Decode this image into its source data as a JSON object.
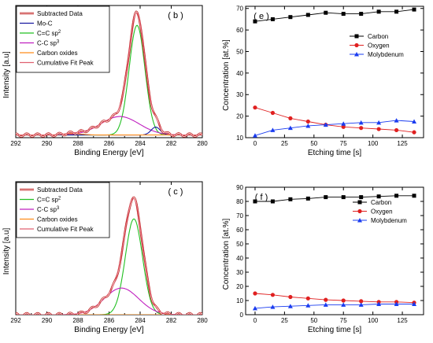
{
  "chart_data": [
    {
      "id": "b",
      "type": "line",
      "panel_label": "( b )",
      "xlabel": "Binding Energy [eV]",
      "ylabel": "Intensity [a.u]",
      "xlim": [
        292,
        280
      ],
      "x_ticks": [
        292,
        290,
        288,
        286,
        284,
        282,
        280
      ],
      "y_ticks_shown": false,
      "legend_position": "top-left",
      "series": [
        {
          "name": "Subtracted Data",
          "color": "#c02020",
          "style": "double-line"
        },
        {
          "name": "Mo-C",
          "color": "#1a1aa0"
        },
        {
          "name": "C=C sp2",
          "color": "#22c022"
        },
        {
          "name": "C-C sp3",
          "color": "#c020c0"
        },
        {
          "name": "Carbon oxides",
          "color": "#ff8c1a"
        },
        {
          "name": "Cumulative Fit Peak",
          "color": "#e06070"
        }
      ],
      "peaks": {
        "C=C sp2": {
          "center": 284.2,
          "fwhm": 1.2,
          "height": 0.83
        },
        "C-C sp3": {
          "center": 285.3,
          "fwhm": 2.9,
          "height": 0.14
        },
        "Mo-C": {
          "center": 283.0,
          "fwhm": 0.7,
          "height": 0.06
        },
        "Carbon oxides": {
          "center": 288.3,
          "fwhm": 1.5,
          "height": 0.01
        }
      },
      "baseline": 0.02,
      "y_range": [
        0,
        1
      ]
    },
    {
      "id": "c",
      "type": "line",
      "panel_label": "( c )",
      "xlabel": "Binding Energy [eV]",
      "ylabel": "Intensity [a.u]",
      "xlim": [
        292,
        280
      ],
      "x_ticks": [
        292,
        290,
        288,
        286,
        284,
        282,
        280
      ],
      "y_ticks_shown": false,
      "legend_position": "top-left",
      "series": [
        {
          "name": "Subtracted Data",
          "color": "#c02020",
          "style": "double-line"
        },
        {
          "name": "C=C sp2",
          "color": "#22c022"
        },
        {
          "name": "C-C sp3",
          "color": "#c020c0"
        },
        {
          "name": "Carbon oxides",
          "color": "#ff8c1a"
        },
        {
          "name": "Cumulative Fit Peak",
          "color": "#e06070"
        }
      ],
      "peaks": {
        "C=C sp2": {
          "center": 284.4,
          "fwhm": 1.3,
          "height": 0.72
        },
        "C-C sp3": {
          "center": 285.2,
          "fwhm": 2.6,
          "height": 0.2
        },
        "Carbon oxides": {
          "center": 288.3,
          "fwhm": 1.5,
          "height": 0.0
        }
      },
      "baseline": 0.0,
      "y_range": [
        0,
        1
      ]
    },
    {
      "id": "e",
      "type": "line",
      "panel_label": "( e )",
      "xlabel": "Etching time [s]",
      "ylabel": "Concentration [at.%]",
      "xlim": [
        -8,
        143
      ],
      "ylim": [
        10,
        71
      ],
      "x_ticks": [
        0,
        25,
        50,
        75,
        100,
        125
      ],
      "y_ticks": [
        10,
        20,
        30,
        40,
        50,
        60,
        70
      ],
      "legend_position": "right",
      "x": [
        0,
        15,
        30,
        45,
        60,
        75,
        90,
        105,
        120,
        135
      ],
      "series": [
        {
          "name": "Carbon",
          "color": "#000000",
          "marker": "square",
          "values": [
            64,
            65,
            66,
            67,
            68,
            67.5,
            67.5,
            68.5,
            68.5,
            69.5
          ]
        },
        {
          "name": "Oxygen",
          "color": "#e02020",
          "marker": "circle",
          "values": [
            24,
            21.5,
            19,
            17.5,
            16,
            15,
            14.5,
            14,
            13.5,
            12.5
          ]
        },
        {
          "name": "Molybdenum",
          "color": "#1a3cf0",
          "marker": "triangle",
          "values": [
            11,
            13.5,
            14.5,
            15.5,
            16,
            16.5,
            17,
            17,
            18,
            17.5
          ]
        }
      ]
    },
    {
      "id": "f",
      "type": "line",
      "panel_label": "( f )",
      "xlabel": "Etching time [s]",
      "ylabel": "Concentration [at.%]",
      "xlim": [
        -8,
        143
      ],
      "ylim": [
        0,
        90
      ],
      "x_ticks": [
        0,
        25,
        50,
        75,
        100,
        125
      ],
      "y_ticks": [
        0,
        10,
        20,
        30,
        40,
        50,
        60,
        70,
        80,
        90
      ],
      "legend_position": "top-right",
      "x": [
        0,
        15,
        30,
        45,
        60,
        75,
        90,
        105,
        120,
        135
      ],
      "series": [
        {
          "name": "Carbon",
          "color": "#000000",
          "marker": "square",
          "values": [
            80,
            80,
            81.5,
            82,
            83,
            83,
            83,
            83.5,
            84,
            84
          ]
        },
        {
          "name": "Oxygen",
          "color": "#e02020",
          "marker": "circle",
          "values": [
            15,
            14,
            12.5,
            11.5,
            10.5,
            10,
            9.5,
            9,
            9,
            8.5
          ]
        },
        {
          "name": "Molybdenum",
          "color": "#1a3cf0",
          "marker": "triangle",
          "values": [
            4.5,
            5.5,
            6,
            6.5,
            7,
            7,
            7,
            7.5,
            7.5,
            7.5
          ]
        }
      ]
    }
  ]
}
